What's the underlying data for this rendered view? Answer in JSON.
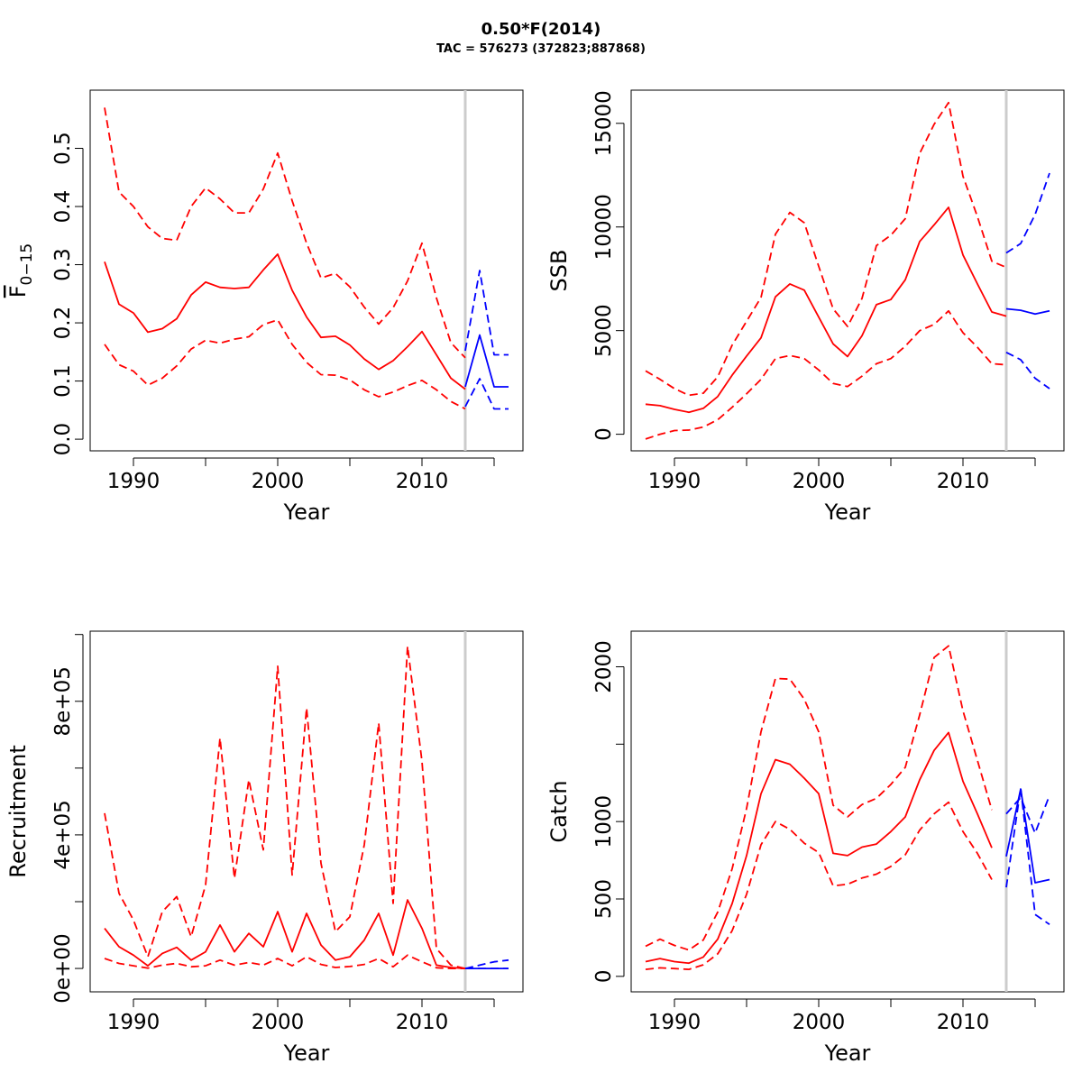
{
  "title": "0.50*F(2014)",
  "subtitle": "TAC = 576273 (372823;887868)",
  "colors": {
    "historical": "#ff0000",
    "forecast": "#0000ff",
    "divider": "#cccccc"
  },
  "divider_year": 2013,
  "chart_data": [
    {
      "type": "line",
      "xlabel": "Year",
      "ylabel_main": "F",
      "ylabel_sub": "0−15",
      "ylabel_overbar": true,
      "xlim": [
        1987,
        2017
      ],
      "ylim": [
        -0.02,
        0.6
      ],
      "x_ticks": [
        1990,
        1995,
        2000,
        2005,
        2010,
        2015
      ],
      "x_tick_labels": [
        "1990",
        "",
        "2000",
        "",
        "2010",
        ""
      ],
      "y_ticks": [
        0,
        0.1,
        0.2,
        0.3,
        0.4,
        0.5
      ],
      "y_tick_labels": [
        "0.0",
        "0.1",
        "0.2",
        "0.3",
        "0.4",
        "0.5"
      ],
      "series": [
        {
          "color": "#ff0000",
          "style": "solid",
          "x": [
            1988,
            1989,
            1990,
            1991,
            1992,
            1993,
            1994,
            1995,
            1996,
            1997,
            1998,
            1999,
            2000,
            2001,
            2002,
            2003,
            2004,
            2005,
            2006,
            2007,
            2008,
            2009,
            2010,
            2011,
            2012,
            2013
          ],
          "y": [
            0.305,
            0.232,
            0.217,
            0.184,
            0.19,
            0.207,
            0.248,
            0.27,
            0.261,
            0.259,
            0.261,
            0.291,
            0.318,
            0.256,
            0.21,
            0.175,
            0.177,
            0.162,
            0.138,
            0.12,
            0.135,
            0.159,
            0.185,
            0.145,
            0.105,
            0.086
          ]
        },
        {
          "color": "#ff0000",
          "style": "dashed",
          "x": [
            1988,
            1989,
            1990,
            1991,
            1992,
            1993,
            1994,
            1995,
            1996,
            1997,
            1998,
            1999,
            2000,
            2001,
            2002,
            2003,
            2004,
            2005,
            2006,
            2007,
            2008,
            2009,
            2010,
            2011,
            2012,
            2013
          ],
          "y": [
            0.57,
            0.425,
            0.4,
            0.365,
            0.345,
            0.342,
            0.4,
            0.432,
            0.413,
            0.389,
            0.389,
            0.43,
            0.492,
            0.41,
            0.337,
            0.277,
            0.285,
            0.262,
            0.227,
            0.198,
            0.226,
            0.272,
            0.337,
            0.243,
            0.166,
            0.14
          ]
        },
        {
          "color": "#ff0000",
          "style": "dashed",
          "x": [
            1988,
            1989,
            1990,
            1991,
            1992,
            1993,
            1994,
            1995,
            1996,
            1997,
            1998,
            1999,
            2000,
            2001,
            2002,
            2003,
            2004,
            2005,
            2006,
            2007,
            2008,
            2009,
            2010,
            2011,
            2012,
            2013
          ],
          "y": [
            0.163,
            0.128,
            0.117,
            0.093,
            0.105,
            0.126,
            0.155,
            0.17,
            0.165,
            0.172,
            0.176,
            0.197,
            0.205,
            0.163,
            0.132,
            0.111,
            0.11,
            0.102,
            0.085,
            0.073,
            0.081,
            0.092,
            0.101,
            0.085,
            0.065,
            0.052
          ]
        },
        {
          "color": "#0000ff",
          "style": "solid",
          "x": [
            2013,
            2014,
            2015,
            2016
          ],
          "y": [
            0.09,
            0.179,
            0.09,
            0.09
          ]
        },
        {
          "color": "#0000ff",
          "style": "dashed",
          "x": [
            2013,
            2014,
            2015,
            2016
          ],
          "y": [
            0.152,
            0.29,
            0.145,
            0.145
          ]
        },
        {
          "color": "#0000ff",
          "style": "dashed",
          "x": [
            2013,
            2014,
            2015,
            2016
          ],
          "y": [
            0.056,
            0.104,
            0.052,
            0.052
          ]
        }
      ]
    },
    {
      "type": "line",
      "xlabel": "Year",
      "ylabel_main": "SSB",
      "ylabel_sub": "",
      "ylabel_overbar": false,
      "xlim": [
        1987,
        2017
      ],
      "ylim": [
        -800,
        16600
      ],
      "x_ticks": [
        1990,
        1995,
        2000,
        2005,
        2010,
        2015
      ],
      "x_tick_labels": [
        "1990",
        "",
        "2000",
        "",
        "2010",
        ""
      ],
      "y_ticks": [
        0,
        5000,
        10000,
        15000
      ],
      "y_tick_labels": [
        "0",
        "5000",
        "10000",
        "15000"
      ],
      "series": [
        {
          "color": "#ff0000",
          "style": "solid",
          "x": [
            1988,
            1989,
            1990,
            1991,
            1992,
            1993,
            1994,
            1995,
            1996,
            1997,
            1998,
            1999,
            2000,
            2001,
            2002,
            2003,
            2004,
            2005,
            2006,
            2007,
            2008,
            2009,
            2010,
            2011,
            2012,
            2013
          ],
          "y": [
            1450,
            1380,
            1200,
            1060,
            1250,
            1820,
            2850,
            3770,
            4650,
            6630,
            7250,
            6950,
            5650,
            4360,
            3750,
            4750,
            6250,
            6500,
            7450,
            9300,
            10100,
            10950,
            8650,
            7250,
            5900,
            5700
          ]
        },
        {
          "color": "#ff0000",
          "style": "dashed",
          "x": [
            1988,
            1989,
            1990,
            1991,
            1992,
            1993,
            1994,
            1995,
            1996,
            1997,
            1998,
            1999,
            2000,
            2001,
            2002,
            2003,
            2004,
            2005,
            2006,
            2007,
            2008,
            2009,
            2010,
            2011,
            2012,
            2013
          ],
          "y": [
            3060,
            2650,
            2200,
            1880,
            1980,
            2770,
            4300,
            5450,
            6600,
            9650,
            10700,
            10200,
            8100,
            6050,
            5200,
            6550,
            9100,
            9600,
            10400,
            13550,
            14950,
            16000,
            12450,
            10500,
            8350,
            8050
          ]
        },
        {
          "color": "#ff0000",
          "style": "dashed",
          "x": [
            1988,
            1989,
            1990,
            1991,
            1992,
            1993,
            1994,
            1995,
            1996,
            1997,
            1998,
            1999,
            2000,
            2001,
            2002,
            2003,
            2004,
            2005,
            2006,
            2007,
            2008,
            2009,
            2010,
            2011,
            2012,
            2013
          ],
          "y": [
            -230,
            0,
            180,
            200,
            350,
            700,
            1300,
            1950,
            2650,
            3650,
            3800,
            3650,
            3100,
            2450,
            2300,
            2800,
            3400,
            3650,
            4250,
            5000,
            5300,
            5950,
            4900,
            4200,
            3400,
            3350
          ]
        },
        {
          "color": "#0000ff",
          "style": "solid",
          "x": [
            2013,
            2014,
            2015,
            2016
          ],
          "y": [
            6050,
            5980,
            5800,
            5950
          ]
        },
        {
          "color": "#0000ff",
          "style": "dashed",
          "x": [
            2013,
            2014,
            2015,
            2016
          ],
          "y": [
            8750,
            9200,
            10600,
            12600
          ]
        },
        {
          "color": "#0000ff",
          "style": "dashed",
          "x": [
            2013,
            2014,
            2015,
            2016
          ],
          "y": [
            3950,
            3600,
            2700,
            2200
          ]
        }
      ]
    },
    {
      "type": "line",
      "xlabel": "Year",
      "ylabel_main": "Recruitment",
      "ylabel_sub": "",
      "ylabel_overbar": false,
      "xlim": [
        1987,
        2017
      ],
      "ylim": [
        -70000,
        1010000
      ],
      "x_ticks": [
        1990,
        1995,
        2000,
        2005,
        2010,
        2015
      ],
      "x_tick_labels": [
        "1990",
        "",
        "2000",
        "",
        "2010",
        ""
      ],
      "y_ticks": [
        0,
        200000,
        400000,
        600000,
        800000,
        1000000
      ],
      "y_tick_labels": [
        "0e+00",
        "",
        "4e+05",
        "",
        "8e+05",
        ""
      ],
      "series": [
        {
          "color": "#ff0000",
          "style": "solid",
          "x": [
            1988,
            1989,
            1990,
            1991,
            1992,
            1993,
            1994,
            1995,
            1996,
            1997,
            1998,
            1999,
            2000,
            2001,
            2002,
            2003,
            2004,
            2005,
            2006,
            2007,
            2008,
            2009,
            2010,
            2011,
            2012,
            2013
          ],
          "y": [
            120000,
            65000,
            40000,
            8000,
            45000,
            63000,
            25000,
            50000,
            130000,
            50000,
            105000,
            65000,
            170000,
            50000,
            165000,
            70000,
            25000,
            35000,
            85000,
            165000,
            40000,
            205000,
            120000,
            10000,
            3000,
            0
          ]
        },
        {
          "color": "#ff0000",
          "style": "dashed",
          "x": [
            1988,
            1989,
            1990,
            1991,
            1992,
            1993,
            1994,
            1995,
            1996,
            1997,
            1998,
            1999,
            2000,
            2001,
            2002,
            2003,
            2004,
            2005,
            2006,
            2007,
            2008,
            2009,
            2010,
            2011,
            2012,
            2013
          ],
          "y": [
            465000,
            225000,
            145000,
            35000,
            170000,
            215000,
            95000,
            250000,
            690000,
            270000,
            565000,
            355000,
            905000,
            280000,
            780000,
            315000,
            110000,
            155000,
            370000,
            735000,
            195000,
            965000,
            620000,
            60000,
            10000,
            0
          ]
        },
        {
          "color": "#ff0000",
          "style": "dashed",
          "x": [
            1988,
            1989,
            1990,
            1991,
            1992,
            1993,
            1994,
            1995,
            1996,
            1997,
            1998,
            1999,
            2000,
            2001,
            2002,
            2003,
            2004,
            2005,
            2006,
            2007,
            2008,
            2009,
            2010,
            2011,
            2012,
            2013
          ],
          "y": [
            30000,
            15000,
            8000,
            1000,
            10000,
            15000,
            5000,
            8000,
            25000,
            10000,
            18000,
            10000,
            30000,
            8000,
            35000,
            12000,
            3000,
            6000,
            12000,
            30000,
            5000,
            40000,
            20000,
            2000,
            0,
            0
          ]
        },
        {
          "color": "#0000ff",
          "style": "solid",
          "x": [
            2013,
            2014,
            2015,
            2016
          ],
          "y": [
            0,
            0,
            0,
            0
          ]
        },
        {
          "color": "#0000ff",
          "style": "dashed",
          "x": [
            2013,
            2014,
            2015,
            2016
          ],
          "y": [
            0,
            10000,
            20000,
            25000
          ]
        },
        {
          "color": "#0000ff",
          "style": "dashed",
          "x": [
            2013,
            2014,
            2015,
            2016
          ],
          "y": [
            0,
            0,
            0,
            0
          ]
        }
      ]
    },
    {
      "type": "line",
      "xlabel": "Year",
      "ylabel_main": "Catch",
      "ylabel_sub": "",
      "ylabel_overbar": false,
      "xlim": [
        1987,
        2017
      ],
      "ylim": [
        -100,
        2230
      ],
      "x_ticks": [
        1990,
        1995,
        2000,
        2005,
        2010,
        2015
      ],
      "x_tick_labels": [
        "1990",
        "",
        "2000",
        "",
        "2010",
        ""
      ],
      "y_ticks": [
        0,
        500,
        1000,
        1500,
        2000
      ],
      "y_tick_labels": [
        "0",
        "500",
        "1000",
        "",
        "2000"
      ],
      "series": [
        {
          "color": "#ff0000",
          "style": "solid",
          "x": [
            1988,
            1989,
            1990,
            1991,
            1992,
            1993,
            1994,
            1995,
            1996,
            1997,
            1998,
            1999,
            2000,
            2001,
            2002,
            2003,
            2004,
            2005,
            2006,
            2007,
            2008,
            2009,
            2010,
            2011,
            2012
          ],
          "y": [
            95,
            115,
            95,
            85,
            125,
            240,
            470,
            780,
            1180,
            1400,
            1370,
            1280,
            1180,
            795,
            780,
            835,
            855,
            935,
            1030,
            1270,
            1460,
            1575,
            1260,
            1050,
            830
          ]
        },
        {
          "color": "#ff0000",
          "style": "dashed",
          "x": [
            1988,
            1989,
            1990,
            1991,
            1992,
            1993,
            1994,
            1995,
            1996,
            1997,
            1998,
            1999,
            2000,
            2001,
            2002,
            2003,
            2004,
            2005,
            2006,
            2007,
            2008,
            2009,
            2010,
            2011,
            2012
          ],
          "y": [
            195,
            240,
            200,
            170,
            235,
            415,
            695,
            1085,
            1580,
            1925,
            1920,
            1790,
            1580,
            1105,
            1030,
            1110,
            1150,
            1240,
            1350,
            1690,
            2060,
            2135,
            1715,
            1395,
            1075
          ]
        },
        {
          "color": "#ff0000",
          "style": "dashed",
          "x": [
            1988,
            1989,
            1990,
            1991,
            1992,
            1993,
            1994,
            1995,
            1996,
            1997,
            1998,
            1999,
            2000,
            2001,
            2002,
            2003,
            2004,
            2005,
            2006,
            2007,
            2008,
            2009,
            2010,
            2011,
            2012
          ],
          "y": [
            45,
            55,
            50,
            45,
            75,
            145,
            295,
            530,
            850,
            1000,
            950,
            860,
            800,
            585,
            595,
            635,
            660,
            710,
            785,
            945,
            1050,
            1125,
            935,
            795,
            625
          ]
        },
        {
          "color": "#0000ff",
          "style": "solid",
          "x": [
            2013,
            2014,
            2015,
            2016
          ],
          "y": [
            775,
            1210,
            605,
            625
          ]
        },
        {
          "color": "#0000ff",
          "style": "dashed",
          "x": [
            2013,
            2014,
            2015,
            2016
          ],
          "y": [
            1050,
            1155,
            925,
            1170
          ]
        },
        {
          "color": "#0000ff",
          "style": "dashed",
          "x": [
            2013,
            2014,
            2015,
            2016
          ],
          "y": [
            575,
            1215,
            400,
            335
          ]
        }
      ]
    }
  ]
}
